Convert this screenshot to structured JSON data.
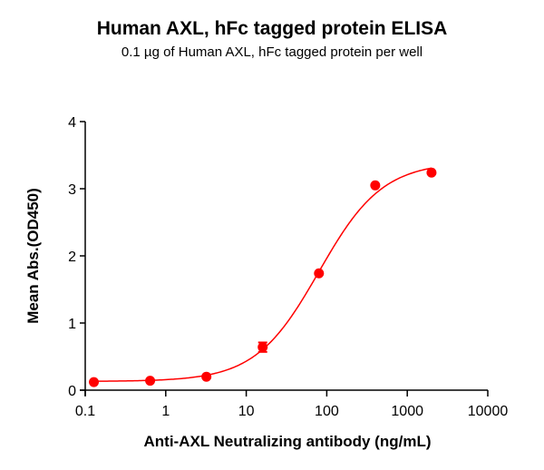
{
  "chart_data": {
    "type": "scatter",
    "title": "Human AXL, hFc tagged protein ELISA",
    "subtitle": "0.1 µg of Human AXL, hFc tagged protein per well",
    "xlabel": "Anti-AXL Neutralizing antibody (ng/mL)",
    "ylabel": "Mean Abs.(OD450)",
    "xscale": "log",
    "xlim": [
      0.1,
      10000
    ],
    "ylim": [
      0,
      4
    ],
    "xticks": [
      "0.1",
      "1",
      "10",
      "100",
      "1000",
      "10000"
    ],
    "yticks": [
      "0",
      "1",
      "2",
      "3",
      "4"
    ],
    "grid": false,
    "legend": null,
    "series": [
      {
        "name": "Mean Abs.(OD450)",
        "color": "#ff0000",
        "x": [
          0.128,
          0.64,
          3.2,
          16,
          80,
          400,
          2000
        ],
        "y": [
          0.12,
          0.14,
          0.2,
          0.64,
          1.74,
          3.05,
          3.24
        ],
        "error": [
          0.01,
          0.01,
          0.01,
          0.07,
          0.02,
          0.02,
          0.02
        ]
      }
    ],
    "fit": {
      "type": "4PL",
      "bottom": 0.13,
      "top": 3.4,
      "ec50": 80,
      "hill": 1.1
    }
  }
}
